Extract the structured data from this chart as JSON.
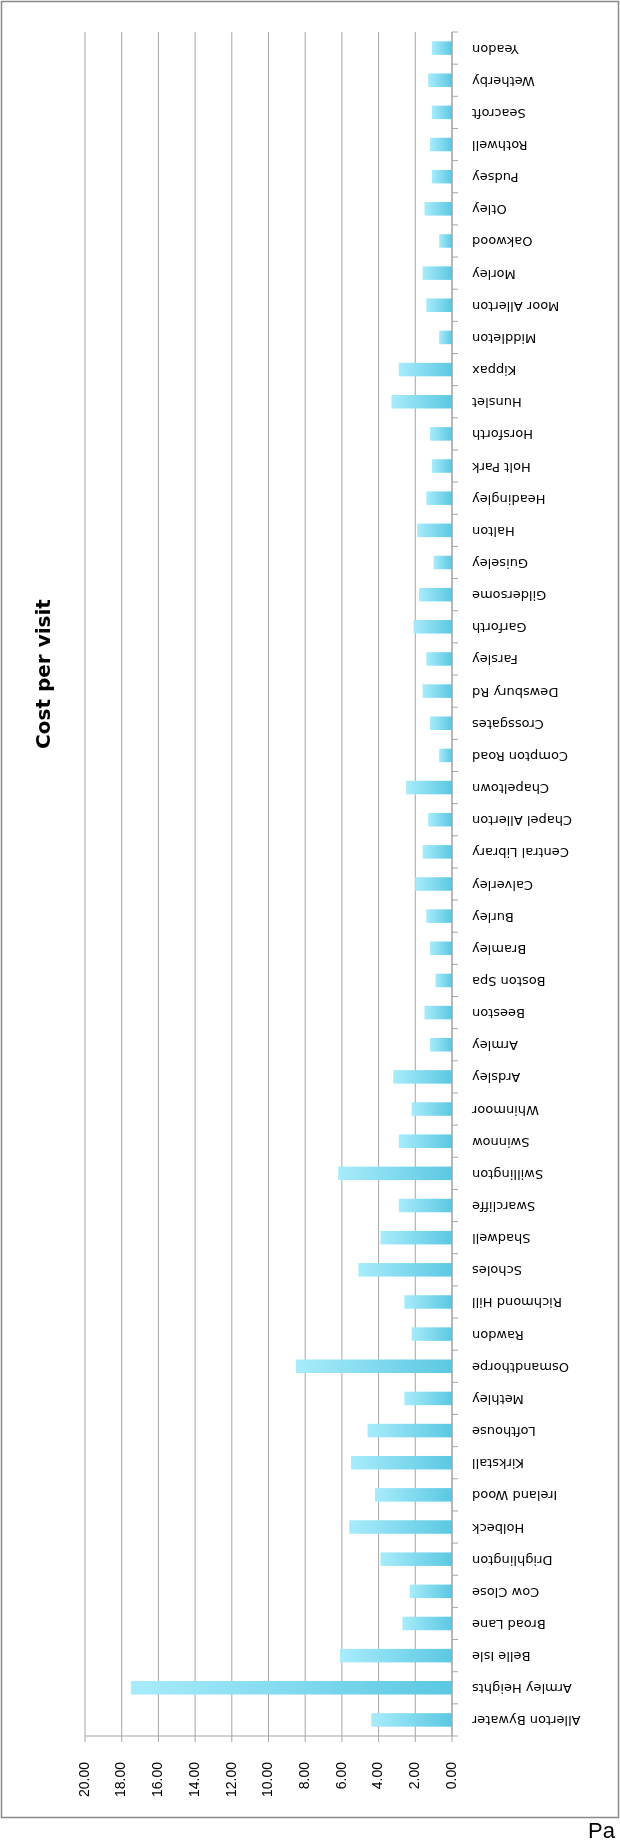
{
  "chart_data": {
    "type": "bar",
    "title": "Cost per visit",
    "orientation": "horizontal",
    "categories": [
      "Yeadon",
      "Wetherby",
      "Seacroft",
      "Rothwell",
      "Pudsey",
      "Otley",
      "Oakwood",
      "Morley",
      "Moor Allerton",
      "Middleton",
      "Kippax",
      "Hunslet",
      "Horsforth",
      "Holt Park",
      "Headingley",
      "Halton",
      "Guiseley",
      "Gildersome",
      "Garforth",
      "Farsley",
      "Dewsbury Rd",
      "Crossgates",
      "Compton Road",
      "Chapeltown",
      "Chapel Allerton",
      "Central Library",
      "Calverley",
      "Burley",
      "Bramley",
      "Boston Spa",
      "Beeston",
      "Armley",
      "Ardsley",
      "Whinmoor",
      "Swinnow",
      "Swillington",
      "Swarcliffe",
      "Shadwell",
      "Scholes",
      "Richmond Hill",
      "Rawdon",
      "Osmandthorpe",
      "Methley",
      "Lofthouse",
      "Kirkstall",
      "Ireland Wood",
      "Holbeck",
      "Drighlington",
      "Cow Close",
      "Broad Lane",
      "Belle Isle",
      "Armley Heights",
      "Allerton Bywater"
    ],
    "values": [
      1.1,
      1.3,
      1.1,
      1.2,
      1.1,
      1.5,
      0.7,
      1.6,
      1.4,
      0.7,
      2.9,
      3.3,
      1.2,
      1.1,
      1.4,
      1.9,
      1.0,
      1.8,
      2.1,
      1.4,
      1.6,
      1.2,
      0.7,
      2.5,
      1.3,
      1.6,
      2.0,
      1.4,
      1.2,
      0.9,
      1.5,
      1.2,
      3.2,
      2.2,
      2.9,
      6.2,
      2.9,
      3.9,
      5.1,
      2.6,
      2.2,
      8.5,
      2.6,
      4.6,
      5.5,
      4.2,
      5.6,
      3.9,
      2.3,
      2.7,
      6.1,
      17.5,
      4.4
    ],
    "color": "#5bc8e2",
    "xlim": [
      20,
      0
    ],
    "xticks": [
      {
        "value": 20,
        "label": "20.00"
      },
      {
        "value": 18,
        "label": "18.00"
      },
      {
        "value": 16,
        "label": "16.00"
      },
      {
        "value": 14,
        "label": "14.00"
      },
      {
        "value": 12,
        "label": "12.00"
      },
      {
        "value": 10,
        "label": "10.00"
      },
      {
        "value": 8,
        "label": "8.00"
      },
      {
        "value": 6,
        "label": "6.00"
      },
      {
        "value": 4,
        "label": "4.00"
      },
      {
        "value": 2,
        "label": "2.00"
      },
      {
        "value": 0,
        "label": "0.00"
      }
    ],
    "grid": "x",
    "annotations": [
      "Pa"
    ]
  }
}
